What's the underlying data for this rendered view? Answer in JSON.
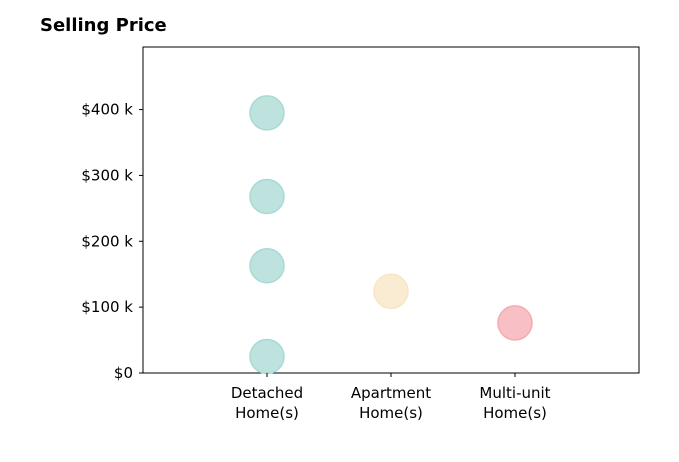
{
  "chart_data": {
    "type": "scatter",
    "title": "Selling Price",
    "xlabel": "",
    "ylabel": "",
    "categories": [
      [
        "Detached",
        "Home(s)"
      ],
      [
        "Apartment",
        "Home(s)"
      ],
      [
        "Multi-unit",
        "Home(s)"
      ]
    ],
    "y_ticks": [
      {
        "value": 0,
        "label": "$0"
      },
      {
        "value": 100000,
        "label": "$100 k"
      },
      {
        "value": 200000,
        "label": "$200 k"
      },
      {
        "value": 300000,
        "label": "$300 k"
      },
      {
        "value": 400000,
        "label": "$400 k"
      }
    ],
    "ylim": [
      0,
      495000
    ],
    "grid": false,
    "legend": "none",
    "points": [
      {
        "category": 0,
        "value": 395000,
        "color": "#a8dad3"
      },
      {
        "category": 0,
        "value": 268000,
        "color": "#a8dad3"
      },
      {
        "category": 0,
        "value": 163000,
        "color": "#a8dad3"
      },
      {
        "category": 0,
        "value": 25000,
        "color": "#a8dad3"
      },
      {
        "category": 1,
        "value": 124000,
        "color": "#f8e6c3"
      },
      {
        "category": 2,
        "value": 76000,
        "color": "#f5a9b0"
      }
    ]
  }
}
